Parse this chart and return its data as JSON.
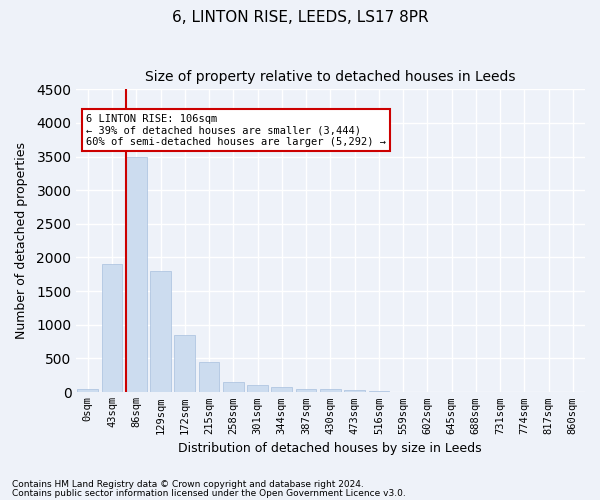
{
  "title": "6, LINTON RISE, LEEDS, LS17 8PR",
  "subtitle": "Size of property relative to detached houses in Leeds",
  "xlabel": "Distribution of detached houses by size in Leeds",
  "ylabel": "Number of detached properties",
  "bar_categories": [
    "0sqm",
    "43sqm",
    "86sqm",
    "129sqm",
    "172sqm",
    "215sqm",
    "258sqm",
    "301sqm",
    "344sqm",
    "387sqm",
    "430sqm",
    "473sqm",
    "516sqm",
    "559sqm",
    "602sqm",
    "645sqm",
    "688sqm",
    "731sqm",
    "774sqm",
    "817sqm",
    "860sqm"
  ],
  "bar_values": [
    50,
    1900,
    3500,
    1800,
    850,
    450,
    150,
    100,
    75,
    50,
    40,
    30,
    10,
    5,
    3,
    2,
    2,
    1,
    1,
    1,
    0
  ],
  "bar_color": "#ccdcef",
  "bar_edgecolor": "#a8c0de",
  "vline_x_idx": 2,
  "vline_color": "#cc0000",
  "ylim": [
    0,
    4500
  ],
  "yticks": [
    0,
    500,
    1000,
    1500,
    2000,
    2500,
    3000,
    3500,
    4000,
    4500
  ],
  "annotation_line1": "6 LINTON RISE: 106sqm",
  "annotation_line2": "← 39% of detached houses are smaller (3,444)",
  "annotation_line3": "60% of semi-detached houses are larger (5,292) →",
  "annotation_box_color": "#ffffff",
  "annotation_box_edgecolor": "#cc0000",
  "footer_line1": "Contains HM Land Registry data © Crown copyright and database right 2024.",
  "footer_line2": "Contains public sector information licensed under the Open Government Licence v3.0.",
  "background_color": "#eef2f9",
  "grid_color": "#ffffff",
  "title_fontsize": 11,
  "subtitle_fontsize": 10,
  "axis_label_fontsize": 9,
  "tick_fontsize": 7.5,
  "footer_fontsize": 6.5
}
